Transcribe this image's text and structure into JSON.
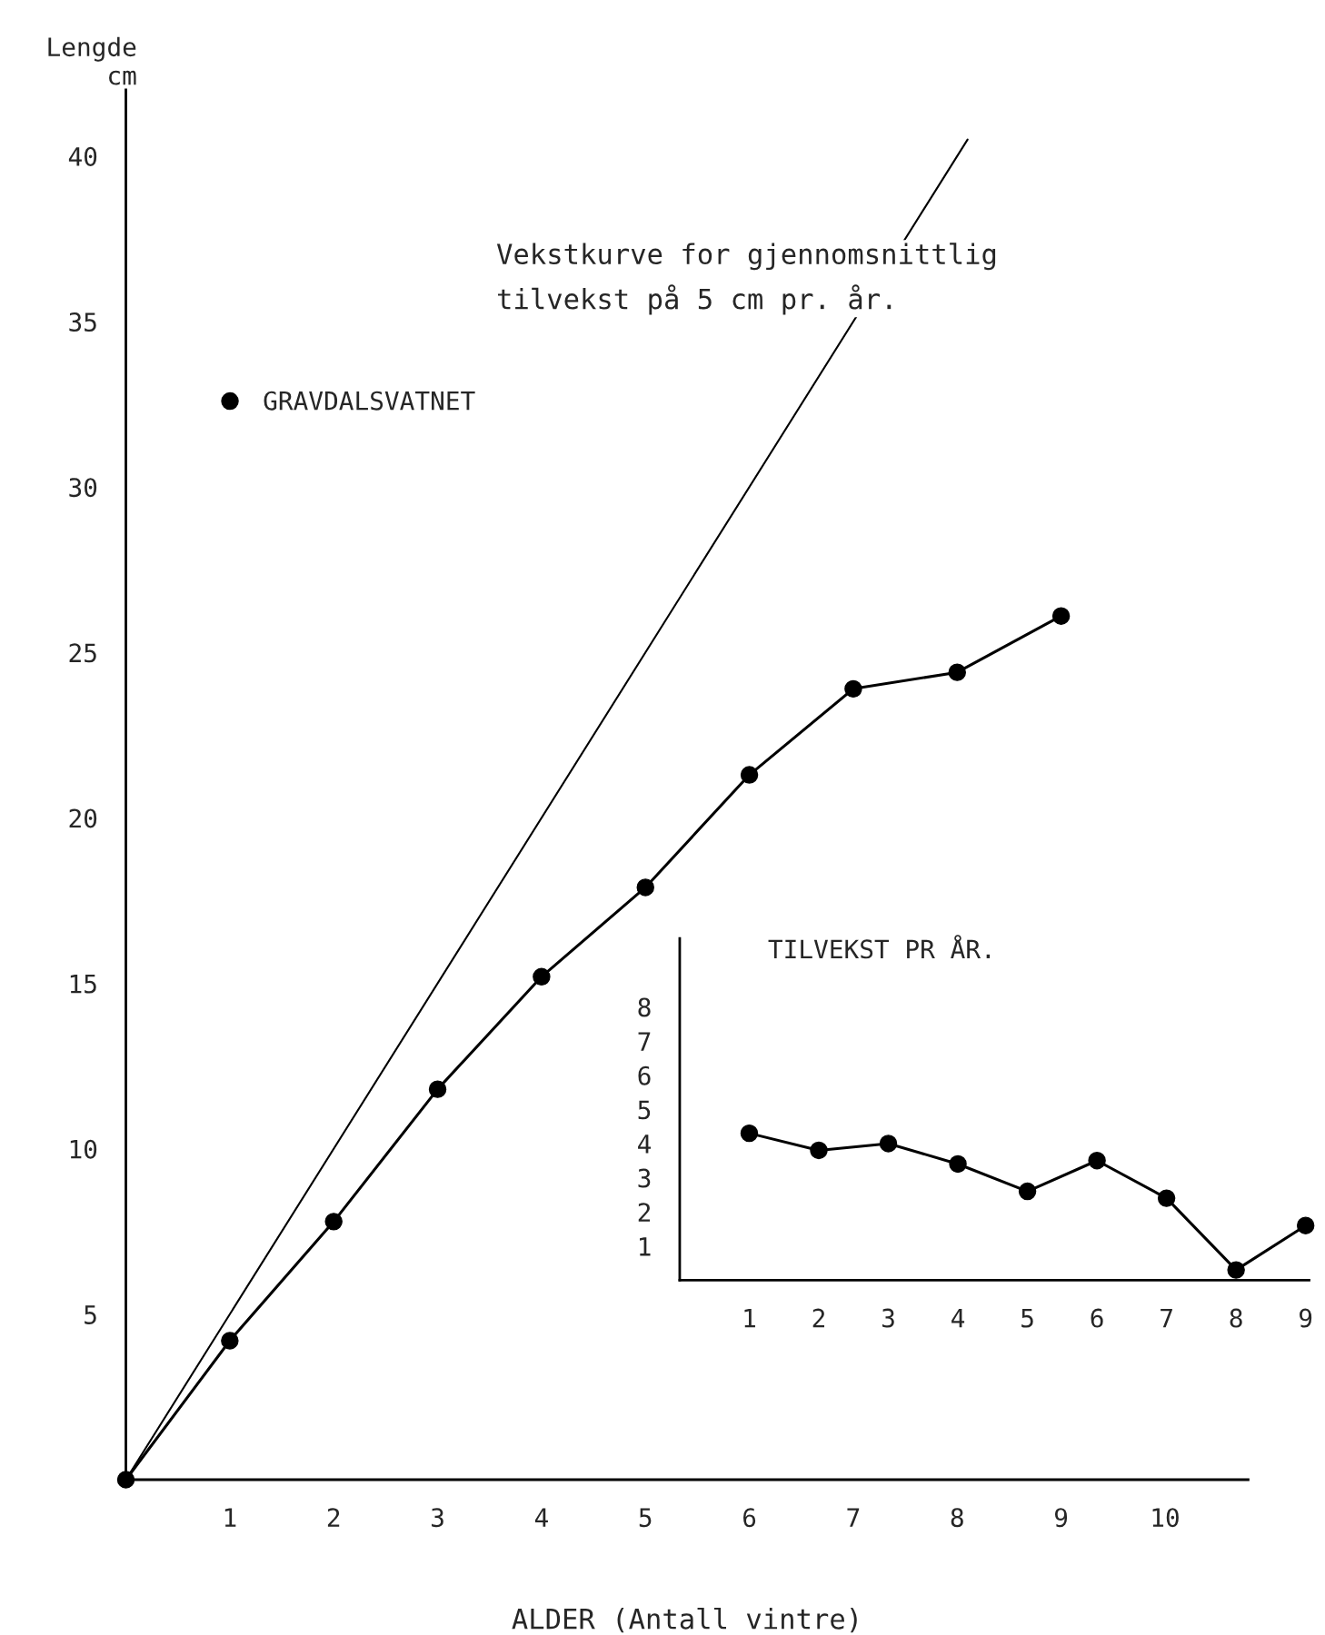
{
  "chart_data": [
    {
      "type": "line",
      "xlabel": "ALDER (Antall vintre)",
      "ylabel": "Lengde\ncm",
      "annotations": [
        "Vekstkurve for gjennomsnittlig\ntilvekst på 5 cm pr. år."
      ],
      "xlim": [
        0,
        10.8
      ],
      "ylim": [
        0,
        42
      ],
      "xticks": [
        1,
        2,
        3,
        4,
        5,
        6,
        7,
        8,
        9,
        10
      ],
      "yticks": [
        5,
        10,
        15,
        20,
        25,
        30,
        35,
        40
      ],
      "grid": false,
      "legend": "top left",
      "series": [
        {
          "name": "GRAVDALSVATNET",
          "color": "#000000",
          "marker": "circle",
          "x": [
            0,
            1,
            2,
            3,
            4,
            5,
            6,
            7,
            8,
            9
          ],
          "values": [
            0,
            4.2,
            7.8,
            11.8,
            15.2,
            17.9,
            21.3,
            23.9,
            24.4,
            26.1
          ]
        },
        {
          "color": "#000000",
          "marker": "none",
          "x": [
            0,
            8.1
          ],
          "values": [
            0,
            40.5
          ]
        }
      ]
    },
    {
      "type": "line",
      "title": "TILVEKST PR ÅR.",
      "xlim": [
        0,
        9.05
      ],
      "ylim": [
        0,
        10
      ],
      "xticks": [
        1,
        2,
        3,
        4,
        5,
        6,
        7,
        8,
        9
      ],
      "yticks": [
        1,
        2,
        3,
        4,
        5,
        6,
        7,
        8
      ],
      "grid": false,
      "series": [
        {
          "color": "#000000",
          "marker": "circle",
          "x": [
            1,
            2,
            3,
            4,
            5,
            6,
            7,
            8,
            9
          ],
          "values": [
            4.3,
            3.8,
            4.0,
            3.4,
            2.6,
            3.5,
            2.4,
            0.3,
            1.6
          ]
        }
      ]
    }
  ]
}
